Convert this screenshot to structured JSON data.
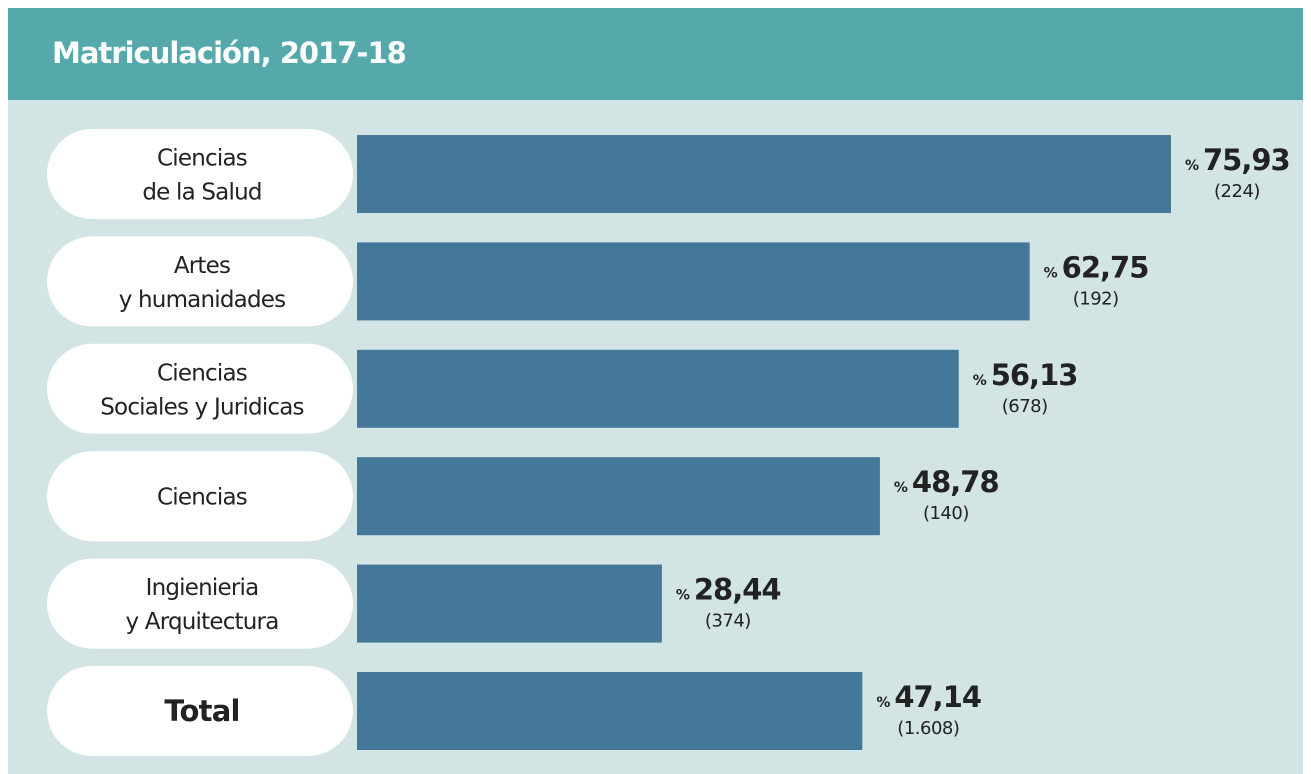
{
  "chart_data": {
    "type": "bar",
    "title": "Matriculación, 2017-18",
    "categories": [
      [
        "Ciencias",
        "de la Salud"
      ],
      [
        "Artes",
        "y humanidades"
      ],
      [
        "Ciencias",
        "Sociales y Juridicas"
      ],
      [
        "Ciencias"
      ],
      [
        "Ingienieria",
        "y Arquitectura"
      ],
      [
        "Total"
      ]
    ],
    "values": [
      75.93,
      62.75,
      56.13,
      48.78,
      28.44,
      47.14
    ],
    "value_labels": [
      "75,93",
      "62,75",
      "56,13",
      "48,78",
      "28,44",
      "47,14"
    ],
    "value_unit": "%",
    "counts": [
      224,
      192,
      678,
      140,
      374,
      1608
    ],
    "count_labels": [
      "(224)",
      "(192)",
      "(678)",
      "(140)",
      "(374)",
      "(1.608)"
    ],
    "color": "#437899"
  }
}
